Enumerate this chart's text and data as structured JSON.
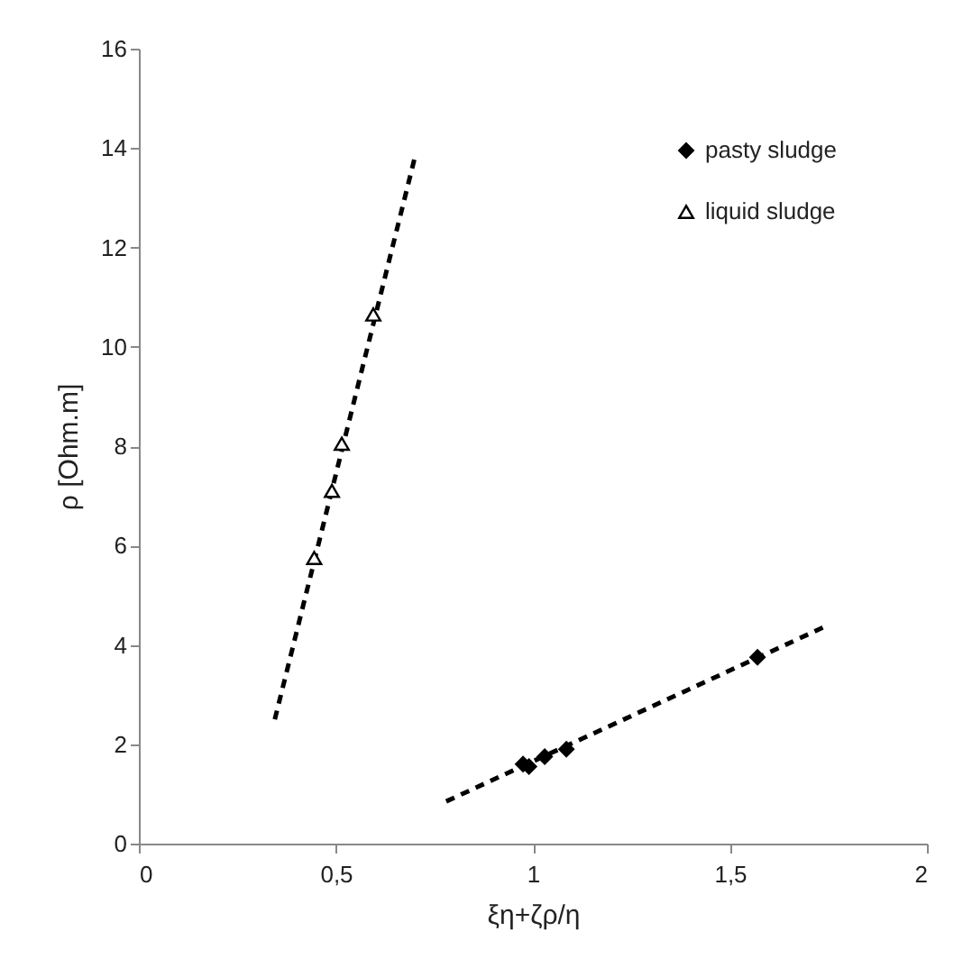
{
  "chart_data": {
    "type": "scatter",
    "xlabel": "ξη+ζρ/η",
    "ylabel": "ρ [Ohm.m]",
    "xlim": [
      0,
      2
    ],
    "xticks": [
      0,
      {
        "value": 0.5,
        "label": "0,5"
      },
      1,
      {
        "value": 1.5,
        "label": "1,5"
      },
      2
    ],
    "ylim": [
      0,
      16
    ],
    "yticks": [
      0,
      2,
      4,
      6,
      8,
      10,
      12,
      14,
      16
    ],
    "grid": false,
    "legend": "top right",
    "series": [
      {
        "name": "pasty sludge",
        "color": "#000000",
        "marker": "diamond",
        "x": [
          0.975,
          0.99,
          1.03,
          1.085,
          1.57
        ],
        "values": [
          1.6,
          1.55,
          1.75,
          1.9,
          3.75
        ]
      },
      {
        "name": "liquid sludge",
        "color": "#000000",
        "marker": "triangle",
        "x": [
          0.445,
          0.49,
          0.515,
          0.595
        ],
        "values": [
          5.75,
          7.1,
          8.05,
          10.65
        ]
      },
      {
        "type": "line",
        "color": "#000000",
        "line_style": "dashed",
        "x": [
          0.78,
          1.75
        ],
        "values": [
          0.85,
          4.4
        ]
      },
      {
        "type": "line",
        "color": "#000000",
        "line_style": "dashed",
        "x": [
          0.345,
          0.7
        ],
        "values": [
          2.5,
          13.8
        ]
      }
    ]
  }
}
